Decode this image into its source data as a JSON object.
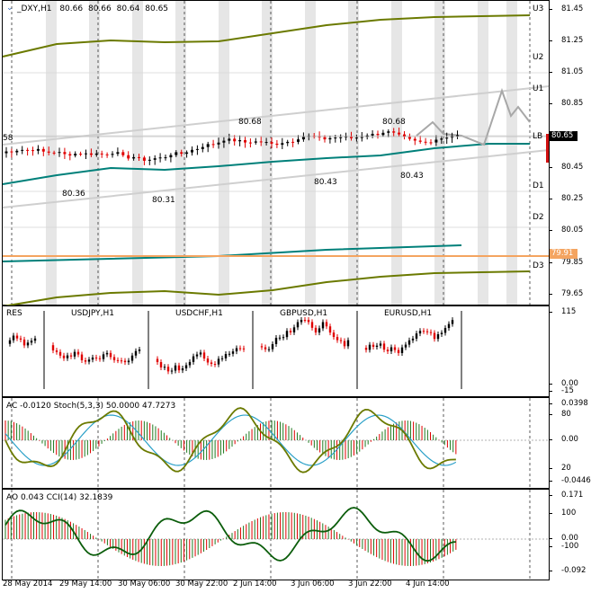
{
  "main": {
    "header": {
      "symbol": "_DXY,H1",
      "open": "80.66",
      "high": "80.66",
      "low": "80.64",
      "close": "80.65"
    },
    "price_scale": [
      "81.45",
      "81.25",
      "81.05",
      "80.85",
      "80.65",
      "80.45",
      "80.25",
      "80.05",
      "79.85",
      "79.65"
    ],
    "level_labels": {
      "u3": "U3",
      "u2": "U2",
      "u1": "U1",
      "lb": "LB",
      "d1": "D1",
      "d2": "D2",
      "d3": "D3"
    },
    "edge_label": "58",
    "price_tags": {
      "current": "80.65",
      "orange_line": "79.91"
    },
    "annotations": [
      "80.36",
      "80.31",
      "80.68",
      "80.43",
      "80.68",
      "80.43"
    ],
    "colors": {
      "bull": "#000000",
      "bear": "#e00000",
      "olive": "#6b7a00",
      "teal": "#00807a",
      "orange": "#f4a460",
      "shade": "#e6e6e6"
    }
  },
  "minicharts": {
    "labels": [
      "RES",
      "USDJPY,H1",
      "USDCHF,H1",
      "GBPUSD,H1",
      "EURUSD,H1"
    ],
    "scale": [
      "115",
      "0.00",
      "-15"
    ]
  },
  "osc1": {
    "label": "AC -0.0120  Stoch(5,3,3) 50.0000 47.7273",
    "scale": [
      "0.0398",
      "80",
      "0.00",
      "20",
      "-0.0446"
    ]
  },
  "osc2": {
    "label": "AO 0.043  CCI(14) 32.1839",
    "scale": [
      "0.171",
      "100",
      "0.00",
      "-100",
      "-0.092"
    ]
  },
  "time_axis": [
    "28 May 2014",
    "29 May 14:00",
    "30 May 06:00",
    "30 May 22:00",
    "2 Jun 14:00",
    "3 Jun 06:00",
    "3 Jun 22:00",
    "4 Jun 14:00"
  ]
}
